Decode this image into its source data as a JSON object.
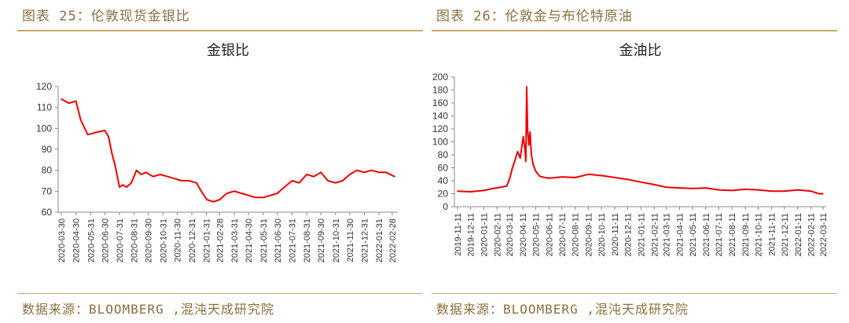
{
  "left": {
    "figure_label": "图表 25：伦敦现货金银比",
    "source": "数据来源：BLOOMBERG ,混沌天成研究院",
    "chart_data": {
      "type": "line",
      "title": "金银比",
      "color": "#ee0000",
      "ylim": [
        60,
        120
      ],
      "yticks": [
        60,
        70,
        80,
        90,
        100,
        110,
        120
      ],
      "xticks": [
        "2020-03-30",
        "2020-04-30",
        "2020-05-31",
        "2020-06-30",
        "2020-07-31",
        "2020-08-31",
        "2020-09-30",
        "2020-10-31",
        "2020-11-30",
        "2020-12-31",
        "2021-01-31",
        "2021-02-28",
        "2021-03-31",
        "2021-04-30",
        "2021-05-31",
        "2021-06-30",
        "2021-07-31",
        "2021-08-31",
        "2021-09-30",
        "2021-10-31",
        "2021-11-30",
        "2021-12-31",
        "2022-01-31",
        "2022-02-28"
      ],
      "x": [
        "2020-03-30",
        "2020-04-15",
        "2020-04-30",
        "2020-05-10",
        "2020-05-25",
        "2020-06-10",
        "2020-06-30",
        "2020-07-08",
        "2020-07-15",
        "2020-07-22",
        "2020-07-31",
        "2020-08-07",
        "2020-08-15",
        "2020-08-25",
        "2020-09-05",
        "2020-09-15",
        "2020-09-25",
        "2020-10-10",
        "2020-10-25",
        "2020-11-10",
        "2020-11-25",
        "2020-12-10",
        "2020-12-25",
        "2021-01-10",
        "2021-01-20",
        "2021-02-01",
        "2021-02-15",
        "2021-02-28",
        "2021-03-15",
        "2021-03-31",
        "2021-04-15",
        "2021-04-30",
        "2021-05-15",
        "2021-05-31",
        "2021-06-15",
        "2021-06-30",
        "2021-07-15",
        "2021-07-31",
        "2021-08-15",
        "2021-08-31",
        "2021-09-15",
        "2021-09-30",
        "2021-10-15",
        "2021-10-31",
        "2021-11-15",
        "2021-11-30",
        "2021-12-15",
        "2021-12-31",
        "2022-01-15",
        "2022-01-31",
        "2022-02-15",
        "2022-03-05"
      ],
      "values": [
        114,
        112,
        113,
        104,
        97,
        98,
        99,
        96,
        88,
        82,
        72,
        73,
        72,
        74,
        80,
        78,
        79,
        77,
        78,
        77,
        76,
        75,
        75,
        74,
        70,
        66,
        65,
        66,
        69,
        70,
        69,
        68,
        67,
        67,
        68,
        69,
        72,
        75,
        74,
        78,
        77,
        79,
        75,
        74,
        75,
        78,
        80,
        79,
        80,
        79,
        79,
        77
      ]
    }
  },
  "right": {
    "figure_label": "图表 26：伦敦金与布伦特原油",
    "source": "数据来源：BLOOMBERG ,混沌天成研究院",
    "chart_data": {
      "type": "line",
      "title": "金油比",
      "color": "#ee0000",
      "ylim": [
        0,
        200
      ],
      "yticks": [
        0,
        20,
        40,
        60,
        80,
        100,
        120,
        140,
        160,
        180,
        200
      ],
      "xticks": [
        "2019-11-11",
        "2019-12-11",
        "2020-01-11",
        "2020-02-11",
        "2020-03-11",
        "2020-04-11",
        "2020-05-11",
        "2020-06-11",
        "2020-07-11",
        "2020-08-11",
        "2020-09-11",
        "2020-10-11",
        "2020-11-11",
        "2020-12-11",
        "2021-01-11",
        "2021-02-11",
        "2021-03-11",
        "2021-04-11",
        "2021-05-11",
        "2021-06-11",
        "2021-07-11",
        "2021-08-11",
        "2021-09-11",
        "2021-10-11",
        "2021-11-11",
        "2021-12-11",
        "2022-01-11",
        "2022-02-11",
        "2022-03-11"
      ],
      "x": [
        "2019-11-11",
        "2019-12-11",
        "2020-01-11",
        "2020-02-01",
        "2020-02-20",
        "2020-03-05",
        "2020-03-12",
        "2020-03-18",
        "2020-03-24",
        "2020-03-30",
        "2020-04-05",
        "2020-04-12",
        "2020-04-16",
        "2020-04-18",
        "2020-04-20",
        "2020-04-22",
        "2020-04-25",
        "2020-04-28",
        "2020-05-01",
        "2020-05-05",
        "2020-05-11",
        "2020-05-20",
        "2020-06-01",
        "2020-06-11",
        "2020-07-11",
        "2020-08-11",
        "2020-09-11",
        "2020-10-11",
        "2020-11-11",
        "2020-12-11",
        "2021-01-11",
        "2021-02-11",
        "2021-03-11",
        "2021-04-11",
        "2021-05-11",
        "2021-06-11",
        "2021-07-11",
        "2021-08-11",
        "2021-09-11",
        "2021-10-11",
        "2021-11-11",
        "2021-12-11",
        "2022-01-11",
        "2022-02-11",
        "2022-03-01",
        "2022-03-11"
      ],
      "values": [
        24,
        23,
        25,
        28,
        30,
        32,
        45,
        60,
        72,
        85,
        75,
        108,
        88,
        70,
        185,
        120,
        95,
        115,
        80,
        65,
        55,
        47,
        45,
        44,
        46,
        45,
        50,
        48,
        45,
        42,
        38,
        34,
        30,
        29,
        28,
        29,
        26,
        25,
        27,
        26,
        24,
        24,
        26,
        24,
        20,
        20
      ]
    }
  }
}
